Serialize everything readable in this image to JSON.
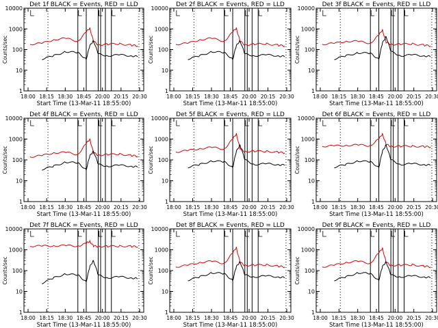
{
  "colors": {
    "events": "#000000",
    "lld": "#dd0000",
    "axis": "#000000",
    "background": "#ffffff"
  },
  "chart_data": [
    {
      "type": "line",
      "title": "Det 1f BLACK = Events, RED = LLD",
      "xlabel": "Start Time (13-Mar-11 18:55:00)",
      "ylabel": "Counts/sec",
      "x_ticks": [
        "18:00",
        "18:15",
        "18:30",
        "18:45",
        "20:00",
        "20:15",
        "20:30"
      ],
      "y_ticks": [
        "1",
        "10",
        "100",
        "1000",
        "10000"
      ],
      "y_scale": "log",
      "ylim": [
        1,
        10000
      ],
      "series": [
        {
          "name": "LLD",
          "x": [
            0.05,
            0.15,
            0.25,
            0.35,
            0.45,
            0.52,
            0.55,
            0.58,
            0.62,
            0.7,
            0.8,
            0.9,
            0.95
          ],
          "y": [
            180,
            200,
            300,
            350,
            250,
            700,
            1100,
            250,
            170,
            180,
            190,
            160,
            150
          ]
        },
        {
          "name": "Events",
          "x": [
            0.15,
            0.25,
            0.35,
            0.45,
            0.52,
            0.55,
            0.58,
            0.62,
            0.7,
            0.8,
            0.9,
            0.95
          ],
          "y": [
            35,
            50,
            80,
            70,
            35,
            150,
            280,
            60,
            50,
            55,
            50,
            45
          ]
        }
      ]
    },
    {
      "type": "line",
      "title": "Det 2f BLACK = Events, RED = LLD",
      "xlabel": "Start Time (13-Mar-11 18:55:00)",
      "ylabel": "Counts/sec",
      "x_ticks": [
        "18:00",
        "18:15",
        "18:30",
        "18:45",
        "20:00",
        "20:15",
        "20:30"
      ],
      "y_ticks": [
        "1",
        "10",
        "100",
        "1000",
        "10000"
      ],
      "y_scale": "log",
      "ylim": [
        1,
        10000
      ],
      "series": [
        {
          "name": "LLD",
          "x": [
            0.05,
            0.15,
            0.25,
            0.35,
            0.45,
            0.52,
            0.55,
            0.58,
            0.62,
            0.7,
            0.8,
            0.9,
            0.95
          ],
          "y": [
            180,
            200,
            300,
            350,
            250,
            700,
            1100,
            250,
            170,
            180,
            190,
            160,
            150
          ]
        },
        {
          "name": "Events",
          "x": [
            0.15,
            0.25,
            0.35,
            0.45,
            0.52,
            0.55,
            0.58,
            0.62,
            0.7,
            0.8,
            0.9,
            0.95
          ],
          "y": [
            35,
            50,
            80,
            70,
            35,
            150,
            280,
            60,
            50,
            55,
            50,
            45
          ]
        }
      ]
    },
    {
      "type": "line",
      "title": "Det 3f BLACK = Events, RED = LLD",
      "xlabel": "Start Time (13-Mar-11 18:55:00)",
      "ylabel": "Counts/sec",
      "x_ticks": [
        "18:00",
        "18:15",
        "18:30",
        "18:45",
        "20:00",
        "20:15",
        "20:30"
      ],
      "y_ticks": [
        "1",
        "10",
        "100",
        "1000",
        "10000"
      ],
      "y_scale": "log",
      "ylim": [
        1,
        10000
      ],
      "series": [
        {
          "name": "LLD",
          "x": [
            0.05,
            0.15,
            0.25,
            0.35,
            0.45,
            0.52,
            0.55,
            0.58,
            0.62,
            0.7,
            0.8,
            0.9,
            0.95
          ],
          "y": [
            180,
            200,
            250,
            250,
            200,
            500,
            900,
            220,
            180,
            180,
            190,
            160,
            150
          ]
        },
        {
          "name": "Events",
          "x": [
            0.15,
            0.25,
            0.35,
            0.45,
            0.52,
            0.55,
            0.58,
            0.62,
            0.7,
            0.8,
            0.9,
            0.95
          ],
          "y": [
            35,
            50,
            70,
            65,
            35,
            200,
            450,
            80,
            50,
            55,
            50,
            45
          ]
        }
      ]
    },
    {
      "type": "line",
      "title": "Det 4f BLACK = Events, RED = LLD",
      "xlabel": "Start Time (13-Mar-11 18:55:00)",
      "ylabel": "Counts/sec",
      "x_ticks": [
        "18:00",
        "18:15",
        "18:30",
        "18:45",
        "20:00",
        "20:15",
        "20:30"
      ],
      "y_ticks": [
        "1",
        "10",
        "100",
        "1000",
        "10000"
      ],
      "y_scale": "log",
      "ylim": [
        1,
        10000
      ],
      "series": [
        {
          "name": "LLD",
          "x": [
            0.05,
            0.15,
            0.25,
            0.35,
            0.45,
            0.52,
            0.55,
            0.58,
            0.62,
            0.7,
            0.8,
            0.9,
            0.95
          ],
          "y": [
            140,
            160,
            220,
            230,
            180,
            600,
            1000,
            220,
            170,
            180,
            190,
            160,
            150
          ]
        },
        {
          "name": "Events",
          "x": [
            0.15,
            0.25,
            0.35,
            0.45,
            0.52,
            0.55,
            0.58,
            0.62,
            0.7,
            0.8,
            0.9,
            0.95
          ],
          "y": [
            35,
            50,
            80,
            70,
            35,
            150,
            280,
            60,
            50,
            55,
            50,
            45
          ]
        }
      ]
    },
    {
      "type": "line",
      "title": "Det 5f BLACK = Events, RED = LLD",
      "xlabel": "Start Time (13-Mar-11 18:55:00)",
      "ylabel": "Counts/sec",
      "x_ticks": [
        "18:00",
        "18:15",
        "18:30",
        "18:45",
        "20:00",
        "20:15",
        "20:30"
      ],
      "y_ticks": [
        "1",
        "10",
        "100",
        "1000",
        "10000"
      ],
      "y_scale": "log",
      "ylim": [
        1,
        10000
      ],
      "series": [
        {
          "name": "LLD",
          "x": [
            0.05,
            0.15,
            0.25,
            0.35,
            0.45,
            0.52,
            0.55,
            0.58,
            0.62,
            0.7,
            0.8,
            0.9,
            0.95
          ],
          "y": [
            240,
            280,
            350,
            400,
            330,
            1000,
            1800,
            350,
            250,
            260,
            260,
            230,
            220
          ]
        },
        {
          "name": "Events",
          "x": [
            0.15,
            0.25,
            0.35,
            0.45,
            0.52,
            0.55,
            0.58,
            0.62,
            0.7,
            0.8,
            0.9,
            0.95
          ],
          "y": [
            45,
            60,
            90,
            80,
            45,
            250,
            550,
            100,
            60,
            65,
            60,
            55
          ]
        }
      ]
    },
    {
      "type": "line",
      "title": "Det 6f BLACK = Events, RED = LLD",
      "xlabel": "Start Time (13-Mar-11 18:55:00)",
      "ylabel": "Counts/sec",
      "x_ticks": [
        "18:00",
        "18:15",
        "18:30",
        "18:45",
        "20:00",
        "20:15",
        "20:30"
      ],
      "y_ticks": [
        "1",
        "10",
        "100",
        "1000",
        "10000"
      ],
      "y_scale": "log",
      "ylim": [
        1,
        10000
      ],
      "series": [
        {
          "name": "LLD",
          "x": [
            0.05,
            0.15,
            0.25,
            0.35,
            0.45,
            0.52,
            0.55,
            0.58,
            0.62,
            0.7,
            0.8,
            0.9,
            0.95
          ],
          "y": [
            450,
            470,
            500,
            520,
            480,
            1000,
            1800,
            550,
            450,
            450,
            460,
            430,
            420
          ]
        },
        {
          "name": "Events",
          "x": [
            0.15,
            0.25,
            0.35,
            0.45,
            0.52,
            0.55,
            0.58,
            0.62,
            0.7,
            0.8,
            0.9,
            0.95
          ],
          "y": [
            45,
            60,
            90,
            80,
            45,
            250,
            550,
            100,
            60,
            65,
            60,
            55
          ]
        }
      ]
    },
    {
      "type": "line",
      "title": "Det 7f BLACK = Events, RED = LLD",
      "xlabel": "Start Time (13-Mar-11 18:55:00)",
      "ylabel": "Counts/sec",
      "x_ticks": [
        "18:00",
        "18:15",
        "18:30",
        "18:45",
        "20:00",
        "20:15",
        "20:30"
      ],
      "y_ticks": [
        "1",
        "10",
        "100",
        "1000",
        "10000"
      ],
      "y_scale": "log",
      "ylim": [
        1,
        10000
      ],
      "series": [
        {
          "name": "LLD",
          "x": [
            0.05,
            0.15,
            0.25,
            0.35,
            0.45,
            0.52,
            0.55,
            0.58,
            0.62,
            0.7,
            0.8,
            0.9,
            0.95
          ],
          "y": [
            1500,
            1500,
            1550,
            1600,
            1500,
            2000,
            2600,
            1500,
            1450,
            1450,
            1500,
            1450,
            1400
          ]
        },
        {
          "name": "Events",
          "x": [
            0.15,
            0.25,
            0.35,
            0.45,
            0.52,
            0.55,
            0.58,
            0.62,
            0.7,
            0.8,
            0.9,
            0.95
          ],
          "y": [
            25,
            45,
            70,
            60,
            30,
            150,
            320,
            60,
            45,
            50,
            45,
            40
          ]
        }
      ]
    },
    {
      "type": "line",
      "title": "Det 8f BLACK = Events, RED = LLD",
      "xlabel": "Start Time (13-Mar-11 18:55:00)",
      "ylabel": "Counts/sec",
      "x_ticks": [
        "18:00",
        "18:15",
        "18:30",
        "18:45",
        "20:00",
        "20:15",
        "20:30"
      ],
      "y_ticks": [
        "1",
        "10",
        "100",
        "1000",
        "10000"
      ],
      "y_scale": "log",
      "ylim": [
        1,
        10000
      ],
      "series": [
        {
          "name": "LLD",
          "x": [
            0.05,
            0.15,
            0.25,
            0.35,
            0.45,
            0.52,
            0.55,
            0.58,
            0.62,
            0.7,
            0.8,
            0.9,
            0.95
          ],
          "y": [
            150,
            180,
            250,
            280,
            220,
            700,
            1300,
            250,
            180,
            180,
            190,
            160,
            150
          ]
        },
        {
          "name": "Events",
          "x": [
            0.15,
            0.25,
            0.35,
            0.45,
            0.52,
            0.55,
            0.58,
            0.62,
            0.7,
            0.8,
            0.9,
            0.95
          ],
          "y": [
            35,
            50,
            80,
            70,
            35,
            150,
            280,
            60,
            50,
            55,
            50,
            45
          ]
        }
      ]
    },
    {
      "type": "line",
      "title": "Det 9f BLACK = Events, RED = LLD",
      "xlabel": "Start Time (13-Mar-11 18:55:00)",
      "ylabel": "Counts/sec",
      "x_ticks": [
        "18:00",
        "18:15",
        "18:30",
        "18:45",
        "20:00",
        "20:15",
        "20:30"
      ],
      "y_ticks": [
        "1",
        "10",
        "100",
        "1000",
        "10000"
      ],
      "y_scale": "log",
      "ylim": [
        1,
        10000
      ],
      "series": [
        {
          "name": "LLD",
          "x": [
            0.05,
            0.15,
            0.25,
            0.35,
            0.45,
            0.52,
            0.55,
            0.58,
            0.62,
            0.7,
            0.8,
            0.9,
            0.95
          ],
          "y": [
            150,
            180,
            250,
            280,
            220,
            700,
            1200,
            250,
            180,
            180,
            190,
            160,
            150
          ]
        },
        {
          "name": "Events",
          "x": [
            0.15,
            0.25,
            0.35,
            0.45,
            0.52,
            0.55,
            0.58,
            0.62,
            0.7,
            0.8,
            0.9,
            0.95
          ],
          "y": [
            35,
            50,
            80,
            70,
            35,
            150,
            280,
            60,
            50,
            55,
            50,
            45
          ]
        }
      ]
    }
  ]
}
